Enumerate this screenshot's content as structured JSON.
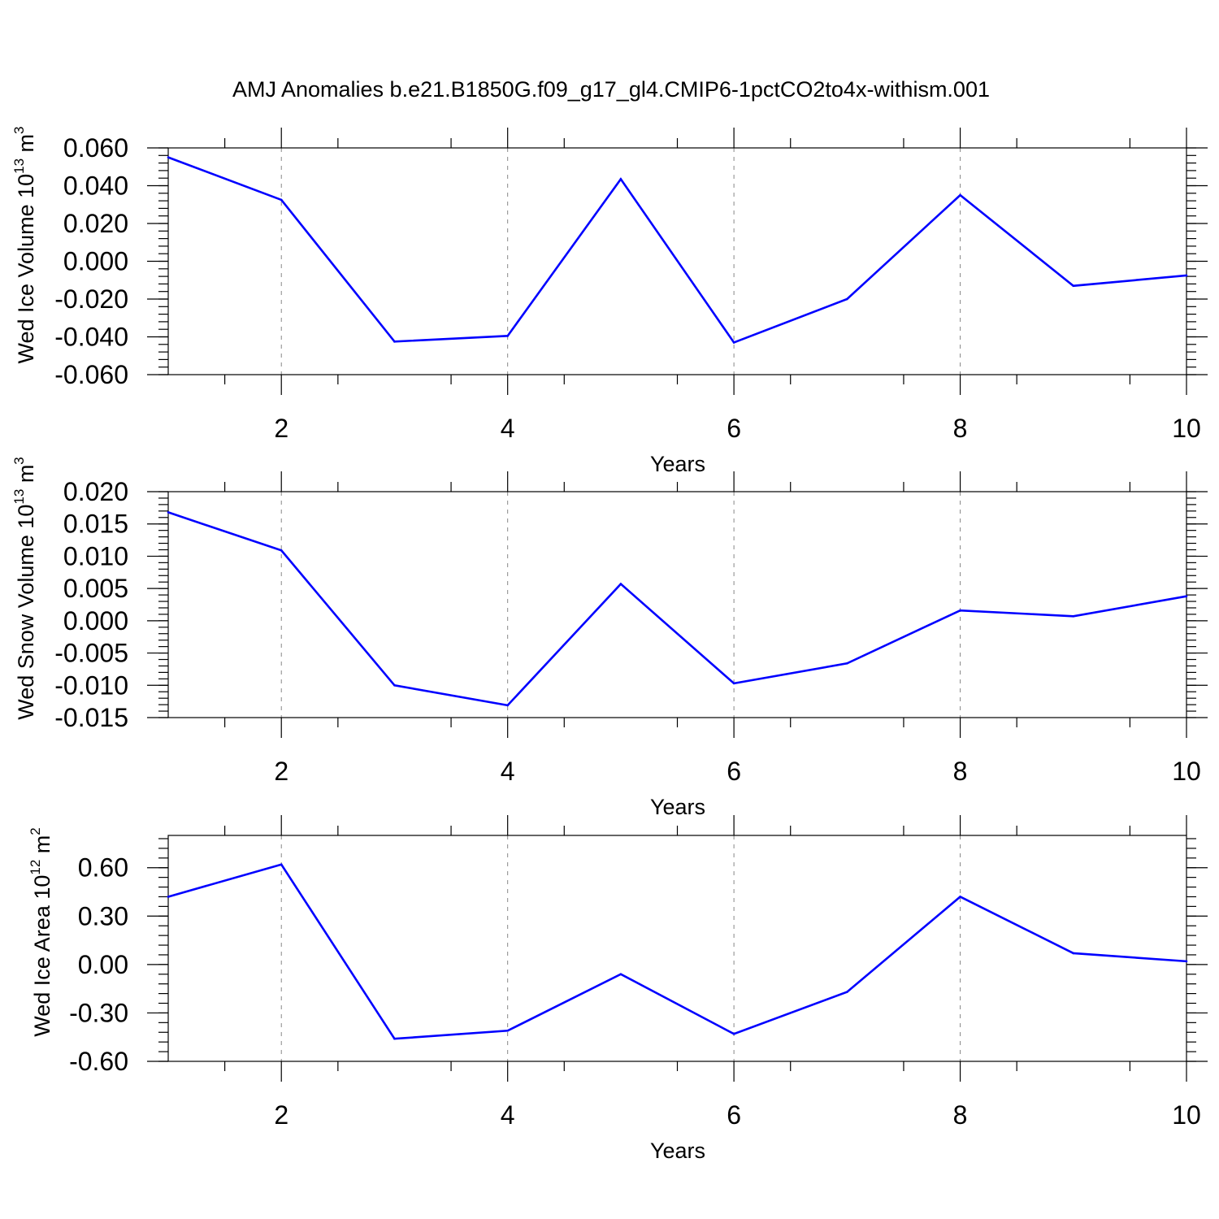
{
  "figure_title": "AMJ Anomalies b.e21.B1850G.f09_g17_gl4.CMIP6-1pctCO2to4x-withism.001",
  "colors": {
    "line": "#0000ff",
    "axis": "#000000",
    "grid": "#888888"
  },
  "chart_data": [
    {
      "type": "line",
      "ylabel_text": "Wed Ice Volume 10",
      "ylabel_exp": "13",
      "ylabel_unit": " m",
      "ylabel_unit_exp": "3",
      "xlabel": "Years",
      "x": [
        1,
        2,
        3,
        4,
        5,
        6,
        7,
        8,
        9,
        10
      ],
      "values": [
        0.055,
        0.0325,
        -0.0425,
        -0.0395,
        0.0435,
        -0.043,
        -0.02,
        0.035,
        -0.013,
        -0.0075
      ],
      "xlim": [
        1,
        10
      ],
      "ylim": [
        -0.06,
        0.06
      ],
      "yticks": [
        -0.06,
        -0.04,
        -0.02,
        0.0,
        0.02,
        0.04,
        0.06
      ],
      "ytick_labels": [
        "-0.060",
        "-0.040",
        "-0.020",
        "0.000",
        "0.020",
        "0.040",
        "0.060"
      ],
      "xticks": [
        2,
        4,
        6,
        8,
        10
      ],
      "xtick_labels": [
        "2",
        "4",
        "6",
        "8",
        "10"
      ],
      "y_minor_step": 0.004
    },
    {
      "type": "line",
      "ylabel_text": "Wed Snow Volume 10",
      "ylabel_exp": "13",
      "ylabel_unit": " m",
      "ylabel_unit_exp": "3",
      "xlabel": "Years",
      "x": [
        1,
        2,
        3,
        4,
        5,
        6,
        7,
        8,
        9,
        10
      ],
      "values": [
        0.0168,
        0.0109,
        -0.01,
        -0.0131,
        0.0057,
        -0.0097,
        -0.0066,
        0.0016,
        0.0007,
        0.0038
      ],
      "xlim": [
        1,
        10
      ],
      "ylim": [
        -0.015,
        0.02
      ],
      "yticks": [
        -0.015,
        -0.01,
        -0.005,
        0.0,
        0.005,
        0.01,
        0.015,
        0.02
      ],
      "ytick_labels": [
        "-0.015",
        "-0.010",
        "-0.005",
        "0.000",
        "0.005",
        "0.010",
        "0.015",
        "0.020"
      ],
      "xticks": [
        2,
        4,
        6,
        8,
        10
      ],
      "xtick_labels": [
        "2",
        "4",
        "6",
        "8",
        "10"
      ],
      "y_minor_step": 0.001
    },
    {
      "type": "line",
      "ylabel_text": "Wed Ice Area 10",
      "ylabel_exp": "12",
      "ylabel_unit": " m",
      "ylabel_unit_exp": "2",
      "xlabel": "Years",
      "x": [
        1,
        2,
        3,
        4,
        5,
        6,
        7,
        8,
        9,
        10
      ],
      "values": [
        0.42,
        0.62,
        -0.46,
        -0.41,
        -0.06,
        -0.43,
        -0.17,
        0.42,
        0.07,
        0.02
      ],
      "xlim": [
        1,
        10
      ],
      "ylim": [
        -0.6,
        0.8
      ],
      "yticks": [
        -0.6,
        -0.3,
        0.0,
        0.3,
        0.6
      ],
      "ytick_labels": [
        "-0.60",
        "-0.30",
        "0.00",
        "0.30",
        "0.60"
      ],
      "xticks": [
        2,
        4,
        6,
        8,
        10
      ],
      "xtick_labels": [
        "2",
        "4",
        "6",
        "8",
        "10"
      ],
      "y_minor_step": 0.06
    }
  ]
}
